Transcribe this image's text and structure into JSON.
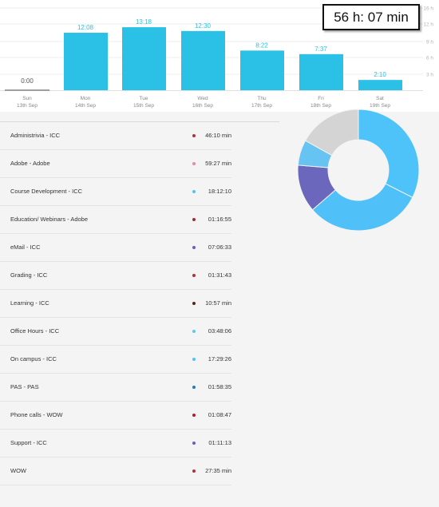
{
  "total": "56 h: 07 min",
  "chart_data": {
    "type": "bar",
    "days": [
      {
        "day": "Sun",
        "date": "13th Sep",
        "label": "0:00",
        "hours": 0
      },
      {
        "day": "Mon",
        "date": "14th Sep",
        "label": "12:08",
        "hours": 12.13
      },
      {
        "day": "Tue",
        "date": "15th Sep",
        "label": "13:18",
        "hours": 13.3
      },
      {
        "day": "Wed",
        "date": "16th Sep",
        "label": "12:30",
        "hours": 12.5
      },
      {
        "day": "Thu",
        "date": "17th Sep",
        "label": "8:22",
        "hours": 8.37
      },
      {
        "day": "Fri",
        "date": "18th Sep",
        "label": "7:37",
        "hours": 7.62
      },
      {
        "day": "Sat",
        "date": "19th Sep",
        "label": "2:10",
        "hours": 2.17
      }
    ],
    "y_ticks": [
      "16 h",
      "12 h",
      "9 h",
      "6 h",
      "3 h"
    ],
    "ylim": [
      0,
      15
    ]
  },
  "activities": [
    {
      "name": "Administrivia - ICC",
      "duration": "46:10 min",
      "color": "#b03040"
    },
    {
      "name": "Adobe - Adobe",
      "duration": "59:27 min",
      "color": "#e88a9a"
    },
    {
      "name": "Course Development - ICC",
      "duration": "18:12:10",
      "color": "#4fc3f7"
    },
    {
      "name": "Education/ Webinars - Adobe",
      "duration": "01:16:55",
      "color": "#a0283a"
    },
    {
      "name": "eMail - ICC",
      "duration": "07:06:33",
      "color": "#6a5acd"
    },
    {
      "name": "Grading - ICC",
      "duration": "01:31:43",
      "color": "#b03040"
    },
    {
      "name": "Learning - ICC",
      "duration": "10:57 min",
      "color": "#5a2418"
    },
    {
      "name": "Office Hours - ICC",
      "duration": "03:48:06",
      "color": "#5ec8f0"
    },
    {
      "name": "On campus - ICC",
      "duration": "17:29:26",
      "color": "#4fc3f7"
    },
    {
      "name": "PAS - PAS",
      "duration": "01:58:35",
      "color": "#1e7fb8"
    },
    {
      "name": "Phone calls - WOW",
      "duration": "01:08:47",
      "color": "#b02028"
    },
    {
      "name": "Support - ICC",
      "duration": "01:11:13",
      "color": "#6a5acd"
    },
    {
      "name": "WOW",
      "duration": "27:35 min",
      "color": "#b03040"
    }
  ],
  "donut": [
    {
      "value": 18.2,
      "color": "#4dc3fa"
    },
    {
      "value": 17.5,
      "color": "#4fc1f8"
    },
    {
      "value": 7.1,
      "color": "#6b67bd"
    },
    {
      "value": 3.8,
      "color": "#67c4f2"
    },
    {
      "value": 9.5,
      "color": "#d4d4d4"
    }
  ]
}
